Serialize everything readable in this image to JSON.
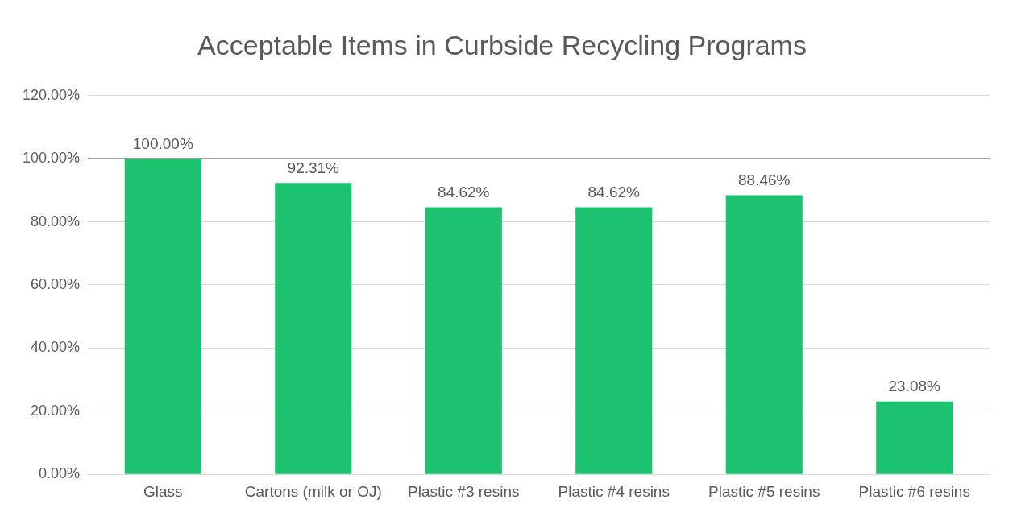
{
  "chart_data": {
    "type": "bar",
    "title": "Acceptable Items in Curbside Recycling Programs",
    "categories": [
      "Glass",
      "Cartons (milk or OJ)",
      "Plastic #3 resins",
      "Plastic #4 resins",
      "Plastic #5 resins",
      "Plastic #6 resins"
    ],
    "values": [
      100,
      92.31,
      84.62,
      84.62,
      88.46,
      23.08
    ],
    "value_labels": [
      "100.00%",
      "92.31%",
      "84.62%",
      "84.62%",
      "88.46%",
      "23.08%"
    ],
    "color": "#1cc270",
    "ylim": [
      0,
      120
    ],
    "yticks": [
      {
        "value": 0,
        "label": "0.00%"
      },
      {
        "value": 20,
        "label": "20.00%"
      },
      {
        "value": 40,
        "label": "40.00%"
      },
      {
        "value": 60,
        "label": "60.00%"
      },
      {
        "value": 80,
        "label": "80.00%"
      },
      {
        "value": 100,
        "label": "100.00%"
      },
      {
        "value": 120,
        "label": "120.00%"
      }
    ],
    "grid": "y",
    "ref_lines": [
      {
        "axis": "y",
        "value": 100,
        "color": "#404040"
      }
    ]
  }
}
